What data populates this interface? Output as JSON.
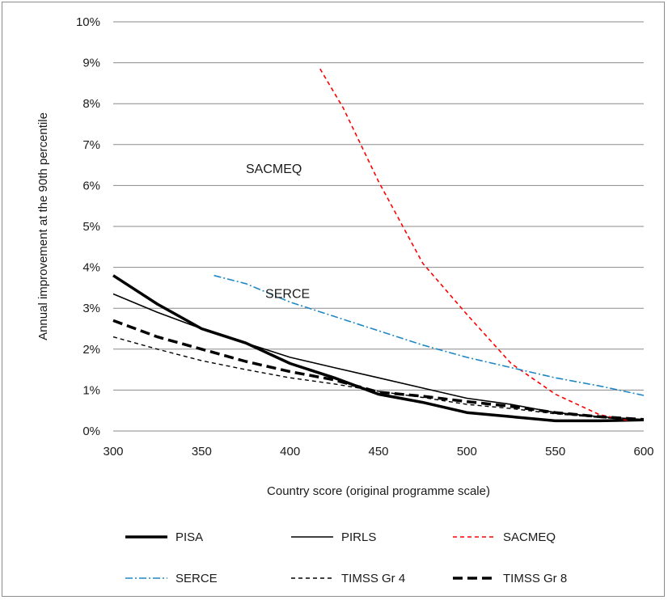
{
  "chart_data": {
    "type": "line",
    "xlabel": "Country score (original programme scale)",
    "ylabel": "Annual improvement at the 90th percentile",
    "xlim": [
      300,
      600
    ],
    "ylim": [
      0,
      10
    ],
    "x_ticks": [
      300,
      350,
      400,
      450,
      500,
      550,
      600
    ],
    "x_tick_labels": [
      "300",
      "350",
      "400",
      "450",
      "500",
      "550",
      "600"
    ],
    "y_ticks": [
      0,
      1,
      2,
      3,
      4,
      5,
      6,
      7,
      8,
      9,
      10
    ],
    "y_tick_labels": [
      "0%",
      "1%",
      "2%",
      "3%",
      "4%",
      "5%",
      "6%",
      "7%",
      "8%",
      "9%",
      "10%"
    ],
    "grid": "horizontal",
    "legend_position": "bottom",
    "series": [
      {
        "name": "PISA",
        "color": "#000000",
        "width": 3.5,
        "dash": "",
        "points": [
          [
            300,
            3.8
          ],
          [
            325,
            3.1
          ],
          [
            350,
            2.5
          ],
          [
            375,
            2.15
          ],
          [
            400,
            1.65
          ],
          [
            425,
            1.3
          ],
          [
            450,
            0.9
          ],
          [
            475,
            0.7
          ],
          [
            500,
            0.45
          ],
          [
            525,
            0.35
          ],
          [
            550,
            0.25
          ],
          [
            575,
            0.25
          ],
          [
            600,
            0.27
          ]
        ]
      },
      {
        "name": "PIRLS",
        "color": "#000000",
        "width": 1.6,
        "dash": "",
        "points": [
          [
            300,
            3.35
          ],
          [
            325,
            2.9
          ],
          [
            350,
            2.5
          ],
          [
            375,
            2.15
          ],
          [
            400,
            1.8
          ],
          [
            425,
            1.55
          ],
          [
            450,
            1.3
          ],
          [
            475,
            1.05
          ],
          [
            500,
            0.8
          ],
          [
            525,
            0.65
          ],
          [
            550,
            0.45
          ],
          [
            575,
            0.35
          ],
          [
            600,
            0.28
          ]
        ]
      },
      {
        "name": "SACMEQ",
        "color": "#ff0000",
        "width": 1.6,
        "dash": "5,4",
        "points": [
          [
            417,
            8.85
          ],
          [
            430,
            7.9
          ],
          [
            450,
            6.1
          ],
          [
            475,
            4.1
          ],
          [
            500,
            2.85
          ],
          [
            525,
            1.65
          ],
          [
            550,
            0.9
          ],
          [
            575,
            0.4
          ],
          [
            592,
            0.25
          ]
        ]
      },
      {
        "name": "SERCE",
        "color": "#1f87c6",
        "width": 1.6,
        "dash": "9,3,2,3",
        "points": [
          [
            357,
            3.8
          ],
          [
            375,
            3.6
          ],
          [
            400,
            3.15
          ],
          [
            425,
            2.8
          ],
          [
            450,
            2.45
          ],
          [
            475,
            2.1
          ],
          [
            500,
            1.8
          ],
          [
            525,
            1.55
          ],
          [
            550,
            1.3
          ],
          [
            575,
            1.1
          ],
          [
            600,
            0.87
          ]
        ]
      },
      {
        "name": "TIMSS Gr 4",
        "color": "#000000",
        "width": 1.4,
        "dash": "5,4",
        "points": [
          [
            300,
            2.3
          ],
          [
            325,
            2.0
          ],
          [
            350,
            1.72
          ],
          [
            375,
            1.5
          ],
          [
            400,
            1.3
          ],
          [
            425,
            1.15
          ],
          [
            450,
            0.97
          ],
          [
            475,
            0.82
          ],
          [
            500,
            0.65
          ],
          [
            525,
            0.55
          ],
          [
            550,
            0.42
          ],
          [
            575,
            0.33
          ],
          [
            600,
            0.27
          ]
        ]
      },
      {
        "name": "TIMSS Gr 8",
        "color": "#000000",
        "width": 3.5,
        "dash": "12,6",
        "points": [
          [
            300,
            2.7
          ],
          [
            325,
            2.3
          ],
          [
            350,
            2.0
          ],
          [
            375,
            1.7
          ],
          [
            400,
            1.45
          ],
          [
            425,
            1.25
          ],
          [
            450,
            0.95
          ],
          [
            475,
            0.85
          ],
          [
            500,
            0.72
          ],
          [
            525,
            0.6
          ],
          [
            550,
            0.45
          ],
          [
            575,
            0.35
          ],
          [
            600,
            0.28
          ]
        ]
      }
    ],
    "annotations": [
      {
        "text": "SACMEQ",
        "x": 375,
        "y": 6.3
      },
      {
        "text": "SERCE",
        "x": 386,
        "y": 3.25
      }
    ]
  }
}
